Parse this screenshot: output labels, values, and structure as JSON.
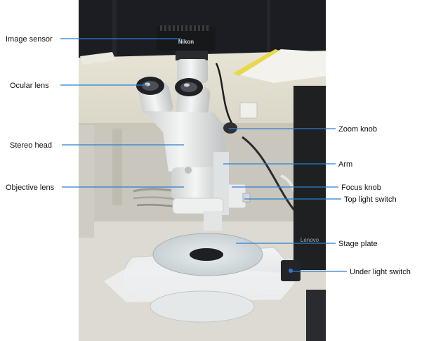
{
  "labels": {
    "image_sensor": "Image sensor",
    "ocular_lens": "Ocular lens",
    "stereo_head": "Stereo head",
    "objective_lens": "Objective lens",
    "zoom_knob": "Zoom knob",
    "arm": "Arm",
    "focus_knob": "Focus knob",
    "top_light_switch": "Top light switch",
    "stage_plate": "Stage plate",
    "under_light_switch": "Under light switch"
  },
  "photo_text": {
    "camera_brand": "Nikon",
    "monitor_brand": "Lenovo"
  },
  "colors": {
    "leader_line": "#2b7fd0",
    "background": "#ffffff"
  }
}
